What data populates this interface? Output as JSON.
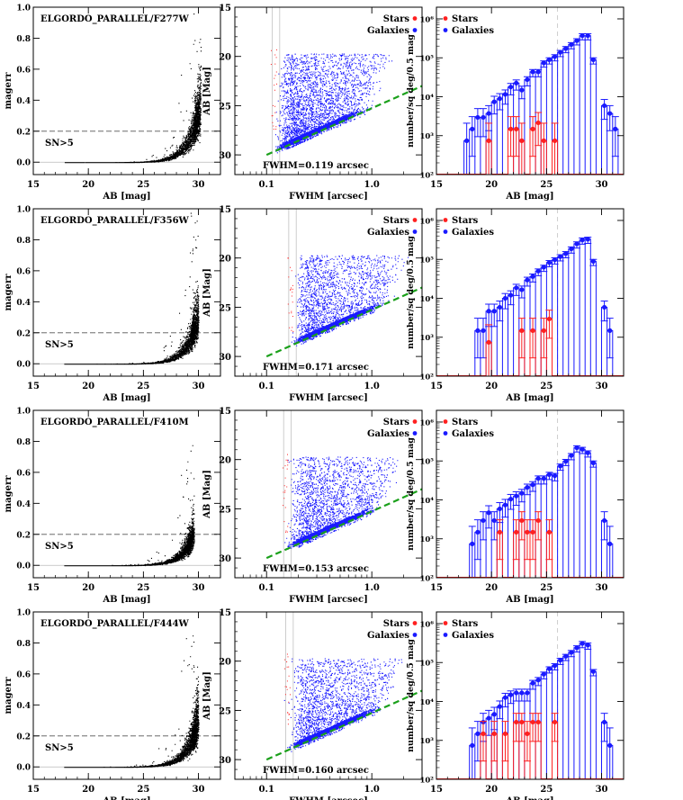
{
  "figure": {
    "rows": [
      {
        "filter_label": "ELGORDO_PARALLEL/F277W",
        "fwhm_label": "FWHM=0.119 arcsec",
        "fwhm": 0.119
      },
      {
        "filter_label": "ELGORDO_PARALLEL/F356W",
        "fwhm_label": "FWHM=0.171 arcsec",
        "fwhm": 0.171
      },
      {
        "filter_label": "ELGORDO_PARALLEL/F410M",
        "fwhm_label": "FWHM=0.153 arcsec",
        "fwhm": 0.153
      },
      {
        "filter_label": "ELGORDO_PARALLEL/F444W",
        "fwhm_label": "FWHM=0.160 arcsec",
        "fwhm": 0.16
      }
    ],
    "sn_label": "SN>5",
    "legend": {
      "stars": "Stars",
      "galaxies": "Galaxies"
    }
  },
  "chart_data": [
    {
      "type": "scatter",
      "panel": "magerr-vs-mag",
      "xlabel": "AB [mag]",
      "ylabel": "magerr",
      "xlim": [
        15,
        32
      ],
      "ylim": [
        -0.08,
        1.0
      ],
      "xticks": [
        "15",
        "20",
        "25",
        "30"
      ],
      "yticks": [
        "0.0",
        "0.2",
        "0.4",
        "0.6",
        "0.8",
        "1.0"
      ],
      "threshold": 0.2,
      "threshold_label": "SN>5",
      "colors": {
        "points": "#000000",
        "threshold": "#555555"
      },
      "note": "dense point cloud: magerr ~ 0.2*10^(0.4*(m-29.5)), per-row upper magnitude 30.2/30.0/29.6/30.0"
    },
    {
      "type": "scatter",
      "panel": "mag-vs-fwhm",
      "xlabel": "FWHM [arcsec]",
      "ylabel": "AB [Mag]",
      "xscale": "log",
      "xlim": [
        0.05,
        3.0
      ],
      "ylim": [
        32,
        15
      ],
      "xticks": [
        "0.1",
        "1.0"
      ],
      "yticks": [
        "15",
        "20",
        "25",
        "30"
      ],
      "series": [
        {
          "name": "Stars",
          "color": "#ff2020"
        },
        {
          "name": "Galaxies",
          "color": "#1a1aff"
        }
      ],
      "envelope": {
        "color": "#1aa01a",
        "from": [
          0.1,
          30.0
        ],
        "to": [
          3.0,
          23.0
        ]
      },
      "psf_fwhm": [
        0.119,
        0.171,
        0.153,
        0.16
      ]
    },
    {
      "type": "line",
      "panel": "number-counts",
      "xlabel": "AB [mag]",
      "ylabel": "number/sq deg/0.5 mag",
      "yscale": "log",
      "xlim": [
        15,
        32
      ],
      "ylim_exp": [
        2,
        6.3
      ],
      "xticks": [
        "15",
        "20",
        "25",
        "30"
      ],
      "yticks": [
        "10²",
        "10³",
        "10⁴",
        "10⁵",
        "10⁶"
      ],
      "vline_mag": 26.0,
      "series": [
        {
          "name": "Galaxies",
          "color": "#1a1aff",
          "rows": [
            {
              "x": [
                17.75,
                18.25,
                18.75,
                19.25,
                19.75,
                20.25,
                20.75,
                21.25,
                21.75,
                22.25,
                22.75,
                23.25,
                23.75,
                24.25,
                24.75,
                25.25,
                25.75,
                26.25,
                26.75,
                27.25,
                27.75,
                28.25,
                28.75,
                29.25,
                30.25,
                30.75,
                31.25
              ],
              "log_y": [
                2.87,
                3.17,
                3.47,
                3.47,
                3.57,
                3.87,
                3.95,
                4.06,
                4.25,
                4.35,
                4.17,
                4.44,
                4.64,
                4.64,
                4.87,
                4.95,
                5.03,
                5.14,
                5.24,
                5.34,
                5.44,
                5.57,
                5.57,
                4.95,
                3.77,
                3.57,
                3.17
              ]
            },
            {
              "x": [
                18.75,
                19.25,
                19.75,
                20.25,
                20.75,
                21.25,
                21.75,
                22.25,
                22.75,
                23.25,
                23.75,
                24.25,
                24.75,
                25.25,
                25.75,
                26.25,
                26.75,
                27.25,
                27.75,
                28.25,
                28.75,
                29.25,
                30.25,
                30.75
              ],
              "log_y": [
                3.17,
                3.17,
                3.67,
                3.67,
                3.77,
                4.0,
                4.08,
                4.27,
                4.22,
                4.47,
                4.56,
                4.7,
                4.8,
                4.92,
                4.99,
                5.07,
                5.15,
                5.27,
                5.4,
                5.5,
                5.52,
                4.95,
                3.77,
                3.17
              ]
            },
            {
              "x": [
                18.25,
                18.75,
                19.25,
                19.75,
                20.25,
                20.75,
                21.25,
                21.75,
                22.25,
                22.75,
                23.25,
                23.75,
                24.25,
                24.75,
                25.25,
                25.75,
                26.25,
                26.75,
                27.25,
                27.75,
                28.25,
                28.75,
                29.25,
                30.25,
                30.75
              ],
              "log_y": [
                2.87,
                3.17,
                3.47,
                3.67,
                3.47,
                3.77,
                3.87,
                4.02,
                4.1,
                4.17,
                4.32,
                4.39,
                4.55,
                4.55,
                4.65,
                4.62,
                4.87,
                4.99,
                5.14,
                5.34,
                5.3,
                5.21,
                4.95,
                3.47,
                2.87
              ]
            },
            {
              "x": [
                18.25,
                18.75,
                19.25,
                19.75,
                20.25,
                20.75,
                21.25,
                21.75,
                22.25,
                22.75,
                23.25,
                23.75,
                24.25,
                24.75,
                25.25,
                25.75,
                26.25,
                26.75,
                27.25,
                27.75,
                28.25,
                28.75,
                29.25,
                30.25,
                30.75
              ],
              "log_y": [
                2.87,
                3.17,
                3.47,
                3.57,
                3.67,
                3.87,
                4.1,
                4.17,
                4.22,
                4.22,
                4.22,
                4.47,
                4.55,
                4.7,
                4.84,
                4.92,
                5.06,
                5.16,
                5.26,
                5.38,
                5.49,
                5.45,
                4.77,
                3.47,
                2.87
              ]
            }
          ]
        },
        {
          "name": "Stars",
          "color": "#ff2020",
          "rows": [
            {
              "x": [
                19.75,
                21.75,
                22.25,
                22.75,
                23.75,
                24.25,
                24.75,
                25.75
              ],
              "log_y": [
                2.87,
                3.17,
                3.17,
                2.87,
                3.17,
                3.33,
                2.87,
                2.87
              ]
            },
            {
              "x": [
                19.75,
                22.75,
                23.75,
                24.75,
                25.25
              ],
              "log_y": [
                2.87,
                3.17,
                3.17,
                3.17,
                3.47
              ]
            },
            {
              "x": [
                20.75,
                22.25,
                22.75,
                23.25,
                23.75,
                24.25,
                25.25
              ],
              "log_y": [
                3.17,
                3.17,
                3.47,
                3.17,
                3.17,
                3.47,
                3.17
              ]
            },
            {
              "x": [
                19.25,
                20.25,
                21.25,
                22.25,
                22.75,
                23.25,
                23.75,
                24.25,
                25.75
              ],
              "log_y": [
                3.17,
                3.17,
                3.17,
                3.47,
                3.47,
                3.17,
                3.47,
                3.47,
                3.47
              ]
            }
          ]
        }
      ]
    }
  ]
}
